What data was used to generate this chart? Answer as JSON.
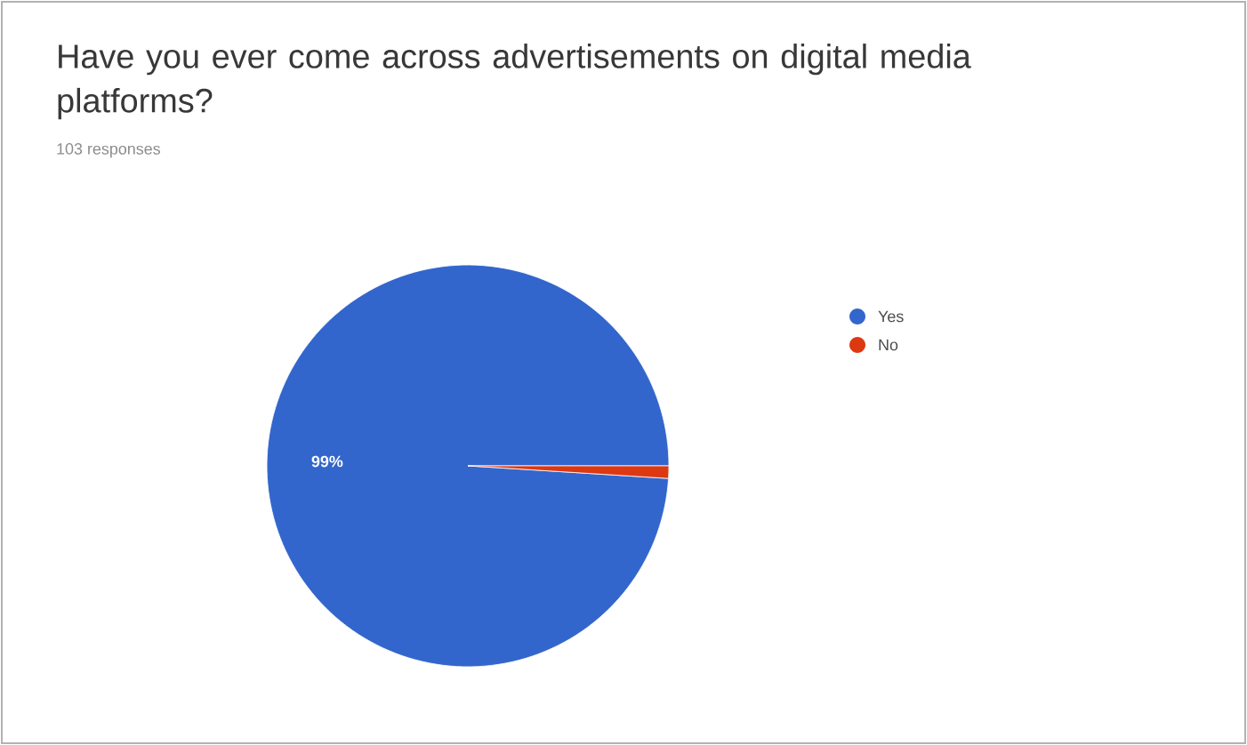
{
  "chart_data": {
    "type": "pie",
    "title": "Have you ever come across advertisements on digital media platforms?",
    "subtitle": "103 responses",
    "categories": [
      "Yes",
      "No"
    ],
    "values": [
      99,
      1
    ],
    "colors": [
      "#3366cc",
      "#dc3912"
    ],
    "value_labels": [
      "99%",
      null
    ],
    "legend": "right"
  }
}
